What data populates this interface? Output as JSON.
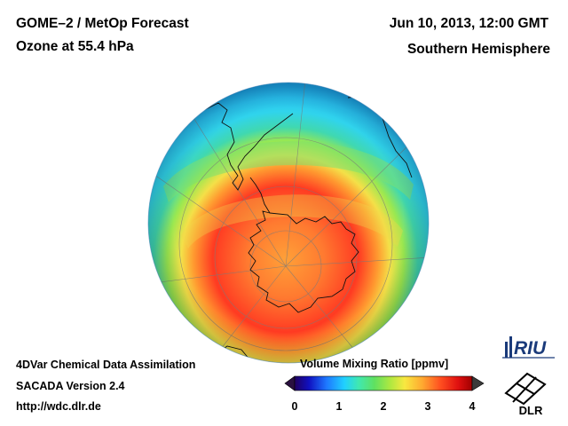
{
  "header": {
    "title_line1": "GOME–2 / MetOp Forecast",
    "title_line2": "Ozone at 55.4 hPa",
    "date": "Jun 10, 2013, 12:00 GMT",
    "region": "Southern Hemisphere"
  },
  "footer": {
    "line1": "4DVar Chemical Data Assimilation",
    "line2": "SACADA Version 2.4",
    "line3": "http://wdc.dlr.de"
  },
  "colorbar": {
    "title": "Volume Mixing Ratio [ppmv]",
    "ticks": [
      "0",
      "1",
      "2",
      "3",
      "4"
    ],
    "range": [
      0,
      4
    ],
    "colors": [
      "#200060",
      "#1010c0",
      "#1e78ff",
      "#20d0ff",
      "#40e8b0",
      "#60e060",
      "#b0e840",
      "#f8e840",
      "#ffa830",
      "#ff5020",
      "#e01010",
      "#a00000"
    ]
  },
  "map": {
    "projection": "orthographic-south-polar",
    "field": "ozone",
    "colors": {
      "cyan": "#30d8f0",
      "green": "#60e070",
      "yellow": "#f0e048",
      "orange": "#ff8c28",
      "red": "#ff3020",
      "ocean_edge": "#1aa8e8",
      "coast": "#101010",
      "grid": "#888888"
    }
  },
  "logos": {
    "riu": "RIU",
    "dlr": "DLR"
  }
}
